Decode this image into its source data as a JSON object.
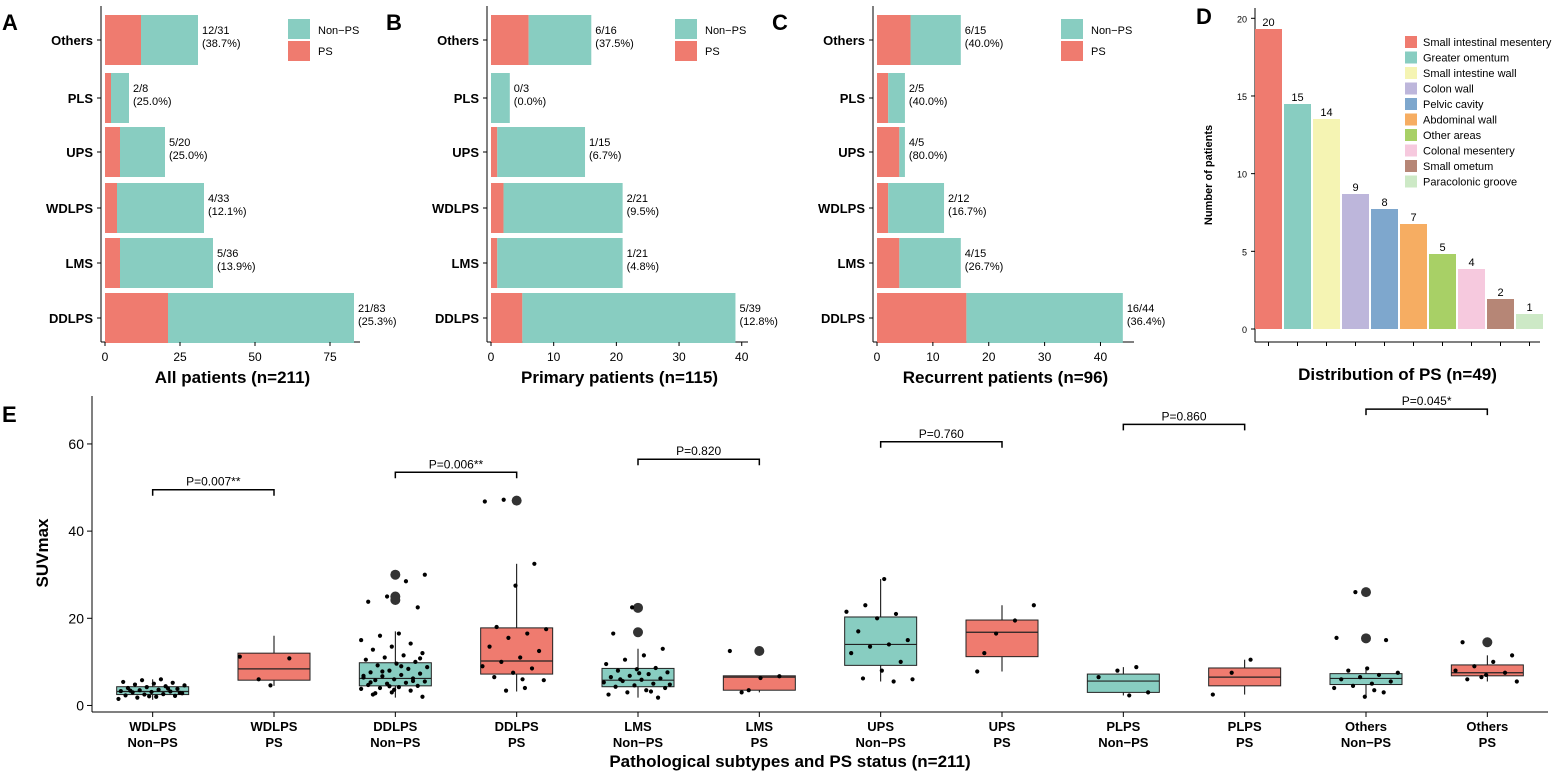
{
  "colors": {
    "non_ps": "#88cdc1",
    "ps": "#ef7b6f",
    "axis": "#000000",
    "point": "#000000"
  },
  "chart_data": [
    {
      "panel": "A",
      "type": "bar",
      "orientation": "horizontal",
      "stacked": true,
      "xlabel": "All patients (n=211)",
      "xlim": [
        0,
        85
      ],
      "xticks": [
        0,
        25,
        50,
        75
      ],
      "categories": [
        "Others",
        "PLS",
        "UPS",
        "WDLPS",
        "LMS",
        "DDLPS"
      ],
      "series": [
        {
          "name": "PS",
          "values": [
            12,
            2,
            5,
            4,
            5,
            21
          ]
        },
        {
          "name": "Non-PS",
          "values": [
            19,
            6,
            15,
            29,
            31,
            62
          ]
        }
      ],
      "labels": [
        "12/31\n(38.7%)",
        "2/8\n(25.0%)",
        "5/20\n(25.0%)",
        "4/33\n(12.1%)",
        "5/36\n(13.9%)",
        "21/83\n(25.3%)"
      ],
      "legend": [
        "Non−PS",
        "PS"
      ]
    },
    {
      "panel": "B",
      "type": "bar",
      "orientation": "horizontal",
      "stacked": true,
      "xlabel": "Primary patients (n=115)",
      "xlim": [
        0,
        41
      ],
      "xticks": [
        0,
        10,
        20,
        30,
        40
      ],
      "categories": [
        "Others",
        "PLS",
        "UPS",
        "WDLPS",
        "LMS",
        "DDLPS"
      ],
      "series": [
        {
          "name": "PS",
          "values": [
            6,
            0,
            1,
            2,
            1,
            5
          ]
        },
        {
          "name": "Non-PS",
          "values": [
            10,
            3,
            14,
            19,
            20,
            34
          ]
        }
      ],
      "labels": [
        "6/16\n(37.5%)",
        "0/3\n(0.0%)",
        "1/15\n(6.7%)",
        "2/21\n(9.5%)",
        "1/21\n(4.8%)",
        "5/39\n(12.8%)"
      ],
      "legend": [
        "Non−PS",
        "PS"
      ]
    },
    {
      "panel": "C",
      "type": "bar",
      "orientation": "horizontal",
      "stacked": true,
      "xlabel": "Recurrent patients (n=96)",
      "xlim": [
        0,
        46
      ],
      "xticks": [
        0,
        10,
        20,
        30,
        40
      ],
      "categories": [
        "Others",
        "PLS",
        "UPS",
        "WDLPS",
        "LMS",
        "DDLPS"
      ],
      "series": [
        {
          "name": "PS",
          "values": [
            6,
            2,
            4,
            2,
            4,
            16
          ]
        },
        {
          "name": "Non-PS",
          "values": [
            9,
            3,
            1,
            10,
            11,
            28
          ]
        }
      ],
      "labels": [
        "6/15\n(40.0%)",
        "2/5\n(40.0%)",
        "4/5\n(80.0%)",
        "2/12\n(16.7%)",
        "4/15\n(26.7%)",
        "16/44\n(36.4%)"
      ],
      "legend": [
        "Non−PS",
        "PS"
      ]
    },
    {
      "panel": "D",
      "type": "bar",
      "orientation": "vertical",
      "xlabel": "Distribution of PS (n=49)",
      "ylabel": "Number of patients",
      "ylim": [
        0,
        21.5
      ],
      "yticks": [
        0,
        5,
        10,
        15,
        20
      ],
      "categories": [
        "Small intestinal mesentery",
        "Greater omentum",
        "Small intestine wall",
        "Colon wall",
        "Pelvic cavity",
        "Abdominal wall",
        "Other areas",
        "Colonal mesentery",
        "Small ometum",
        "Paracolonic groove"
      ],
      "values": [
        20,
        15,
        14,
        9,
        8,
        7,
        5,
        4,
        2,
        1
      ],
      "bar_colors": [
        "#ef7b6f",
        "#88cdc1",
        "#f5f4b3",
        "#bdb6db",
        "#7ea7cd",
        "#f6ad62",
        "#a8d066",
        "#f6c9de",
        "#b68676",
        "#cde9c6"
      ]
    },
    {
      "panel": "E",
      "type": "box",
      "xlabel": "Pathological subtypes and PS status (n=211)",
      "ylabel": "SUVmax",
      "ylim": [
        -1.5,
        71
      ],
      "yticks": [
        0,
        20,
        40,
        60
      ],
      "groups": [
        {
          "label1": "WDLPS",
          "label2": "Non−PS",
          "status": "non_ps",
          "q1": 2.5,
          "median": 3.2,
          "q3": 4.3,
          "wlo": 1.3,
          "whi": 6.0,
          "points": [
            1.5,
            1.8,
            2.0,
            2.2,
            2.3,
            2.5,
            2.6,
            2.8,
            3.0,
            3.1,
            3.2,
            3.3,
            3.5,
            3.6,
            3.8,
            4.0,
            4.2,
            4.4,
            4.6,
            4.8,
            5.0,
            5.2,
            5.4,
            5.8,
            6.0,
            2.9,
            3.4,
            2.1,
            3.9
          ],
          "outliers": []
        },
        {
          "label1": "WDLPS",
          "label2": "PS",
          "status": "ps",
          "q1": 5.8,
          "median": 8.4,
          "q3": 12.0,
          "wlo": 4.5,
          "whi": 16.0,
          "points": [
            4.6,
            10.8,
            11.2,
            6.0
          ],
          "outliers": []
        },
        {
          "label1": "DDLPS",
          "label2": "Non−PS",
          "status": "non_ps",
          "q1": 4.5,
          "median": 6.2,
          "q3": 9.8,
          "wlo": 1.8,
          "whi": 17.0,
          "points": [
            2.0,
            2.5,
            3.0,
            3.4,
            3.8,
            4.0,
            4.2,
            4.5,
            4.7,
            5.0,
            5.2,
            5.5,
            5.8,
            6.0,
            6.2,
            6.4,
            6.7,
            7.0,
            7.3,
            7.6,
            8.0,
            8.4,
            8.8,
            9.2,
            9.6,
            10.0,
            10.5,
            11.0,
            11.5,
            12.0,
            12.8,
            13.5,
            14.2,
            15.0,
            16.0,
            16.5,
            22.5,
            23.8,
            25.0,
            28.5,
            30.0,
            2.8,
            3.6,
            5.6,
            6.8,
            7.8,
            9.0,
            10.8,
            5.3,
            4.4
          ],
          "outliers": [
            30.0,
            25.0,
            24.2
          ]
        },
        {
          "label1": "DDLPS",
          "label2": "PS",
          "status": "ps",
          "q1": 7.2,
          "median": 10.2,
          "q3": 17.8,
          "wlo": 3.2,
          "whi": 32.5,
          "points": [
            3.4,
            4.0,
            5.8,
            6.5,
            7.5,
            8.5,
            9.0,
            10.0,
            11.0,
            12.5,
            13.5,
            15.5,
            16.5,
            17.5,
            18.0,
            27.5,
            32.5,
            46.8,
            47.2,
            6.0
          ],
          "outliers": [
            47.0
          ]
        },
        {
          "label1": "LMS",
          "label2": "Non−PS",
          "status": "non_ps",
          "q1": 4.3,
          "median": 5.8,
          "q3": 8.5,
          "wlo": 1.8,
          "whi": 13.0,
          "points": [
            1.8,
            2.5,
            3.0,
            3.5,
            4.0,
            4.3,
            4.6,
            5.0,
            5.3,
            5.6,
            5.9,
            6.2,
            6.5,
            6.8,
            7.2,
            7.6,
            8.0,
            8.3,
            8.6,
            9.5,
            10.5,
            11.5,
            13.0,
            16.5,
            22.5,
            3.2,
            4.8,
            6.0,
            7.4
          ],
          "outliers": [
            22.4,
            16.8
          ]
        },
        {
          "label1": "LMS",
          "label2": "PS",
          "status": "ps",
          "q1": 3.5,
          "median": 6.5,
          "q3": 6.8,
          "wlo": 3.0,
          "whi": 6.8,
          "points": [
            3.0,
            6.3,
            6.7,
            12.5,
            3.5
          ],
          "outliers": [
            12.5
          ]
        },
        {
          "label1": "UPS",
          "label2": "Non−PS",
          "status": "non_ps",
          "q1": 9.2,
          "median": 14.0,
          "q3": 20.3,
          "wlo": 5.5,
          "whi": 29.0,
          "points": [
            5.5,
            6.0,
            6.2,
            8.0,
            10.0,
            12.0,
            13.5,
            14.0,
            15.0,
            17.0,
            20.0,
            21.0,
            21.5,
            23.0,
            29.0
          ],
          "outliers": []
        },
        {
          "label1": "UPS",
          "label2": "PS",
          "status": "ps",
          "q1": 11.2,
          "median": 16.8,
          "q3": 19.6,
          "wlo": 7.8,
          "whi": 23.0,
          "points": [
            7.8,
            16.5,
            19.5,
            23.0,
            12.0
          ],
          "outliers": []
        },
        {
          "label1": "PLPS",
          "label2": "Non−PS",
          "status": "non_ps",
          "q1": 3.0,
          "median": 5.6,
          "q3": 7.2,
          "wlo": 2.3,
          "whi": 8.8,
          "points": [
            2.3,
            3.0,
            6.5,
            8.0,
            8.8
          ],
          "outliers": []
        },
        {
          "label1": "PLPS",
          "label2": "PS",
          "status": "ps",
          "q1": 4.5,
          "median": 6.5,
          "q3": 8.6,
          "wlo": 2.5,
          "whi": 10.5,
          "points": [
            2.5,
            7.5,
            10.5
          ],
          "outliers": []
        },
        {
          "label1": "Others",
          "label2": "Non−PS",
          "status": "non_ps",
          "q1": 4.8,
          "median": 6.2,
          "q3": 7.3,
          "wlo": 2.0,
          "whi": 8.6,
          "points": [
            2.0,
            3.0,
            4.0,
            4.5,
            5.0,
            5.5,
            6.0,
            6.5,
            7.0,
            7.5,
            8.0,
            8.5,
            15.0,
            15.5,
            26.0,
            3.5
          ],
          "outliers": [
            26.0,
            15.4
          ]
        },
        {
          "label1": "Others",
          "label2": "PS",
          "status": "ps",
          "q1": 6.8,
          "median": 7.5,
          "q3": 9.3,
          "wlo": 5.5,
          "whi": 11.5,
          "points": [
            5.5,
            6.0,
            7.0,
            7.5,
            8.0,
            9.0,
            10.0,
            11.5,
            14.5,
            6.5
          ],
          "outliers": [
            14.5
          ]
        }
      ],
      "comparisons": [
        {
          "label": "P=0.007**",
          "y": 49.5
        },
        {
          "label": "P=0.006**",
          "y": 53.5
        },
        {
          "label": "P=0.820",
          "y": 56.5
        },
        {
          "label": "P=0.760",
          "y": 60.5
        },
        {
          "label": "P=0.860",
          "y": 64.5
        },
        {
          "label": "P=0.045*",
          "y": 68.0
        }
      ]
    }
  ]
}
